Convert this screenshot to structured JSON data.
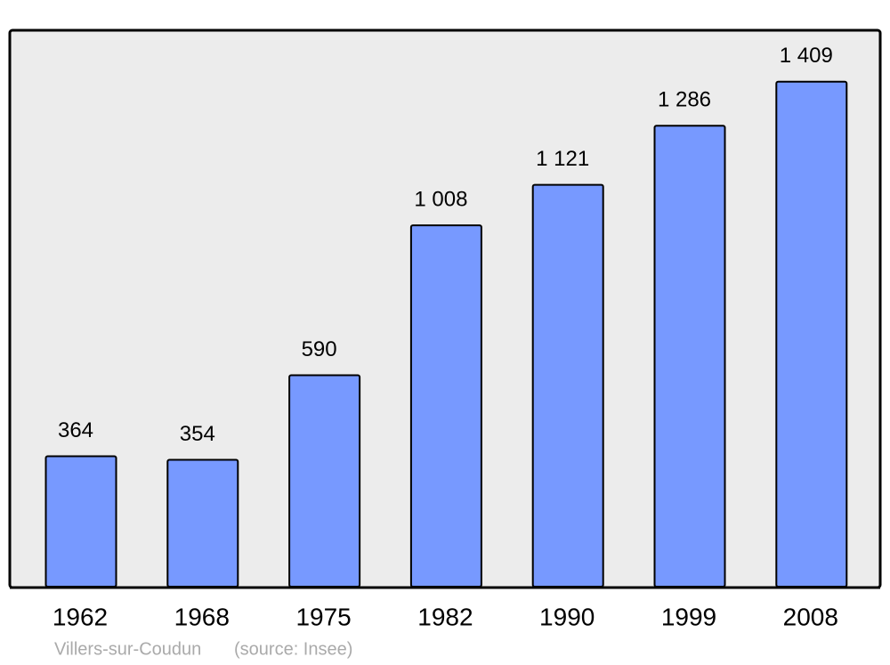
{
  "chart_data": {
    "type": "bar",
    "categories": [
      "1962",
      "1968",
      "1975",
      "1982",
      "1990",
      "1999",
      "2008"
    ],
    "values": [
      364,
      354,
      590,
      1008,
      1121,
      1286,
      1409
    ],
    "value_labels": [
      "364",
      "354",
      "590",
      "1 008",
      "1 121",
      "1 286",
      "1 409"
    ],
    "color": "#7799ff",
    "title": "Villers-sur-Coudun",
    "source": "(source: Insee)"
  }
}
